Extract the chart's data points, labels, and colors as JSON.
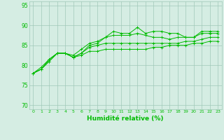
{
  "title": "",
  "xlabel": "Humidité relative (%)",
  "ylabel": "",
  "background_color": "#d5ede3",
  "grid_color": "#a0c8b8",
  "line_color": "#00bb00",
  "xlim": [
    -0.5,
    23.5
  ],
  "ylim": [
    69,
    96
  ],
  "yticks": [
    70,
    75,
    80,
    85,
    90,
    95
  ],
  "xticks": [
    0,
    1,
    2,
    3,
    4,
    5,
    6,
    7,
    8,
    9,
    10,
    11,
    12,
    13,
    14,
    15,
    16,
    17,
    18,
    19,
    20,
    21,
    22,
    23
  ],
  "series": [
    [
      78,
      79,
      81.5,
      83,
      83,
      82,
      83,
      85,
      85.5,
      87,
      88.5,
      88,
      88,
      89.5,
      88,
      88.5,
      88.5,
      88,
      88,
      87,
      87,
      88.5,
      88.5,
      88.5
    ],
    [
      78,
      79.5,
      81.5,
      83,
      83,
      82.5,
      84,
      85.5,
      86,
      87,
      87.5,
      87.5,
      87.5,
      88,
      87.5,
      87,
      87,
      86.5,
      87,
      87,
      87,
      88,
      88,
      88
    ],
    [
      78,
      79,
      81,
      83,
      83,
      82,
      83,
      84.5,
      85,
      85.5,
      85.5,
      85.5,
      85.5,
      85.5,
      85.5,
      85.5,
      85.5,
      85.5,
      85.5,
      86,
      86,
      86.5,
      87,
      87
    ],
    [
      78,
      79,
      81,
      83,
      83,
      82,
      82.5,
      83.5,
      83.5,
      84,
      84,
      84,
      84,
      84,
      84,
      84.5,
      84.5,
      85,
      85,
      85,
      85.5,
      85.5,
      86,
      86
    ]
  ]
}
